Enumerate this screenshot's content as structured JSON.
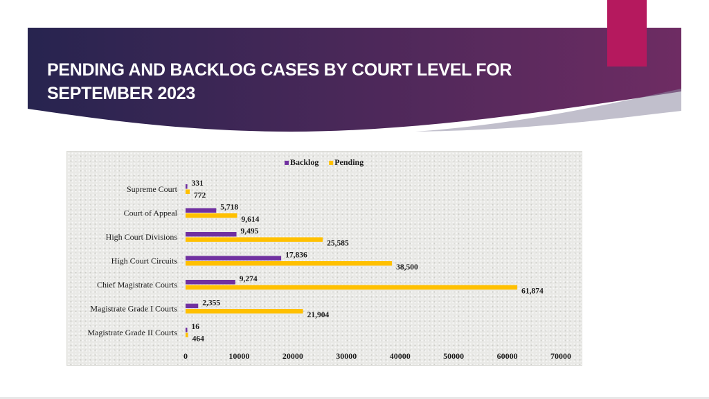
{
  "slide": {
    "title_line1": "PENDING AND BACKLOG CASES BY COURT LEVEL FOR",
    "title_line2": "SEPTEMBER 2023",
    "colors": {
      "banner_start": "#27244f",
      "banner_end": "#6e2c63",
      "accent": "#b5195e"
    }
  },
  "chart_data": {
    "type": "bar",
    "orientation": "horizontal",
    "categories": [
      "Supreme Court",
      "Court of Appeal",
      "High Court Divisions",
      "High Court Circuits",
      "Chief Magistrate Courts",
      "Magistrate Grade I Courts",
      "Magistrate Grade II Courts"
    ],
    "series": [
      {
        "name": "Backlog",
        "color": "#7030a0",
        "values": [
          331,
          5718,
          9495,
          17836,
          9274,
          2355,
          16
        ],
        "labels": [
          "331",
          "5,718",
          "9,495",
          "17,836",
          "9,274",
          "2,355",
          "16"
        ]
      },
      {
        "name": "Pending",
        "color": "#ffc000",
        "values": [
          772,
          9614,
          25585,
          38500,
          61874,
          21904,
          464
        ],
        "labels": [
          "772",
          "9,614",
          "25,585",
          "38,500",
          "61,874",
          "21,904",
          "464"
        ]
      }
    ],
    "xlim": [
      0,
      70000
    ],
    "xticks": [
      0,
      10000,
      20000,
      30000,
      40000,
      50000,
      60000,
      70000
    ],
    "xtick_labels": [
      "0",
      "10000",
      "20000",
      "30000",
      "40000",
      "50000",
      "60000",
      "70000"
    ],
    "grid": false,
    "legend_position": "top-center",
    "title": "",
    "xlabel": "",
    "ylabel": ""
  }
}
